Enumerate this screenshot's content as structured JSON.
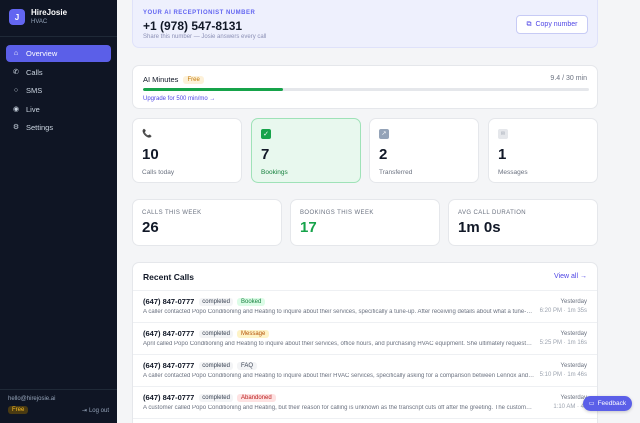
{
  "brand": {
    "logo_letter": "J",
    "name": "HireJosie",
    "subtitle": "HVAC"
  },
  "nav": [
    {
      "label": "Overview",
      "icon": "home-icon",
      "glyph": "⌂",
      "active": true
    },
    {
      "label": "Calls",
      "icon": "phone-icon",
      "glyph": "✆",
      "active": false
    },
    {
      "label": "SMS",
      "icon": "chat-icon",
      "glyph": "○",
      "active": false
    },
    {
      "label": "Live",
      "icon": "live-icon",
      "glyph": "◉",
      "active": false
    },
    {
      "label": "Settings",
      "icon": "gear-icon",
      "glyph": "⚙",
      "active": false
    }
  ],
  "footer": {
    "email": "hello@hirejosie.ai",
    "plan": "Free",
    "logout_label": "Log out",
    "logout_glyph": "⇥"
  },
  "receptionist": {
    "label": "YOUR AI RECEPTIONIST NUMBER",
    "phone": "+1 (978) 547-8131",
    "note": "Share this number — Josie answers every call",
    "copy_label": "Copy number",
    "copy_glyph": "⧉"
  },
  "minutes": {
    "title": "AI Minutes",
    "plan_badge": "Free",
    "usage_text": "9.4 / 30 min",
    "used": 9.4,
    "total": 30,
    "bar_color": "#16a34a",
    "upgrade_label": "Upgrade for 500 min/mo →"
  },
  "stats": [
    {
      "icon": "phone-icon",
      "glyph": "📞",
      "value": "10",
      "label": "Calls today"
    },
    {
      "icon": "check-icon",
      "glyph": "✓",
      "value": "7",
      "label": "Bookings",
      "highlight": true
    },
    {
      "icon": "transfer-icon",
      "glyph": "↗",
      "value": "2",
      "label": "Transferred"
    },
    {
      "icon": "message-icon",
      "glyph": "✉",
      "value": "1",
      "label": "Messages"
    }
  ],
  "weekly": [
    {
      "label": "CALLS THIS WEEK",
      "value": "26"
    },
    {
      "label": "BOOKINGS THIS WEEK",
      "value": "17",
      "green": true
    },
    {
      "label": "AVG CALL DURATION",
      "value": "1m 0s"
    }
  ],
  "recent": {
    "title": "Recent Calls",
    "view_all": "View all →",
    "calls": [
      {
        "phone": "(647) 847-0777",
        "status": "completed",
        "tag": "Booked",
        "summary": "A caller contacted Popo Conditioning and Heating to inquire about their services, specifically a tune-up. After receiving details about what a tune-up includes, they booked an appointment.",
        "when": "Yesterday",
        "time": "6:20 PM · 1m 35s"
      },
      {
        "phone": "(647) 847-0777",
        "status": "completed",
        "tag": "Message",
        "summary": "April called Popo Conditioning and Heating to inquire about their services, office hours, and purchasing HVAC equipment. She ultimately requested a callback.",
        "when": "Yesterday",
        "time": "5:25 PM · 1m 16s"
      },
      {
        "phone": "(647) 847-0777",
        "status": "completed",
        "tag": "FAQ",
        "summary": "A caller contacted Popo Conditioning and Heating to inquire about their HVAC services, specifically asking for a comparison between Lennox and Carrier units.",
        "when": "Yesterday",
        "time": "5:10 PM · 1m 46s"
      },
      {
        "phone": "(647) 847-0777",
        "status": "completed",
        "tag": "Abandoned",
        "summary": "A customer called Popo Conditioning and Heating, but their reason for calling is unknown as the transcript cuts off after the greeting. The customer hung up.",
        "when": "Yesterday",
        "time": "1:10 AM · 4s"
      }
    ]
  },
  "feedback": {
    "label": "Feedback",
    "glyph": "▭"
  }
}
